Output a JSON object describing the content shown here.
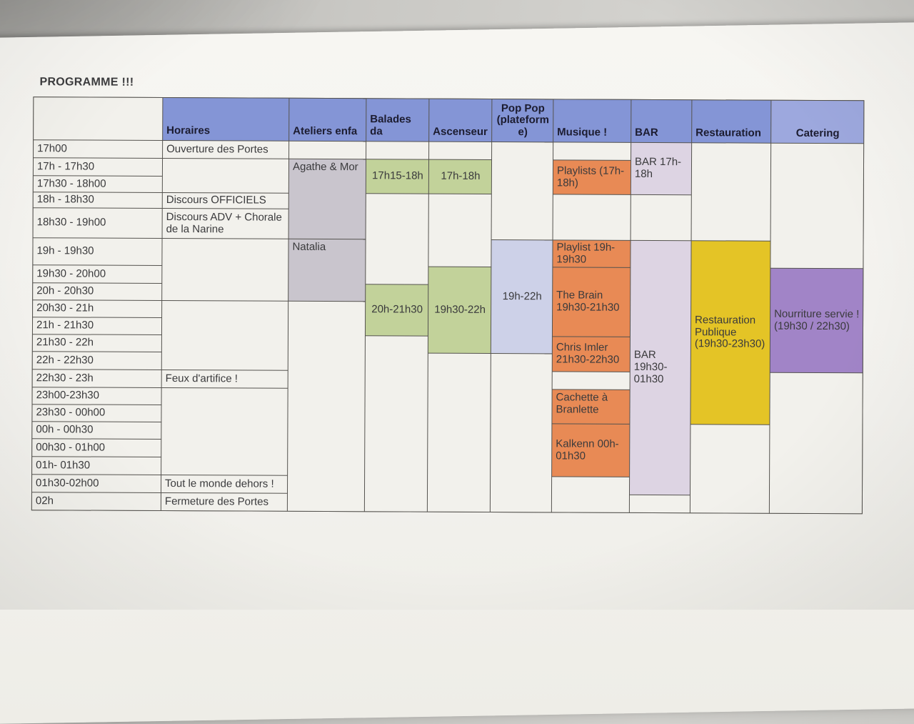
{
  "schedule": {
    "title": "PROGRAMME !!!",
    "columns": [
      "",
      "Horaires",
      "Ateliers enfa",
      "Balades da",
      "Ascenseur",
      "Pop Pop (plateforme)",
      "Musique !",
      "BAR",
      "Restauration",
      "Catering"
    ],
    "times": [
      "17h00",
      "17h - 17h30",
      "17h30 - 18h00",
      "18h - 18h30",
      "18h30 - 19h00",
      "19h - 19h30",
      "19h30 - 20h00",
      "20h - 20h30",
      "20h30 - 21h",
      "21h - 21h30",
      "21h30 - 22h",
      "22h - 22h30",
      "22h30 - 23h",
      "23h00-23h30",
      "23h30 - 00h00",
      "00h - 00h30",
      "00h30 - 01h00",
      "01h- 01h30",
      "01h30-02h00",
      "02h"
    ],
    "events": {
      "ouverture": "Ouverture des Portes",
      "discours_officiels": "Discours OFFICIELS",
      "discours_adv": "Discours ADV + Chorale de la Narine",
      "feux": "Feux d'artifice !",
      "tout_le_monde": "Tout le monde dehors !",
      "fermeture": "Fermeture des Portes",
      "agathe": "Agathe & Mor",
      "natalia": "Natalia",
      "balade_1715": "17h15-18h",
      "balade_20h": "20h-21h30",
      "ascenseur_17h": "17h-18h",
      "ascenseur_1930": "19h30-22h",
      "poppop_19h": "19h-22h",
      "playlists_17h": "Playlists (17h-18h)",
      "playlist_19h": "Playlist 19h-19h30",
      "the_brain": "The Brain 19h30-21h30",
      "chris_imler": "Chris Imler 21h30-22h30",
      "cachette": "Cachette à Branlette",
      "kalkenn": "Kalkenn 00h-01h30",
      "bar_17h": "BAR 17h-18h",
      "bar_1930": "BAR 19h30-01h30",
      "restauration_publique": "Restauration Publique (19h30-23h30)",
      "nourriture": "Nourriture servie ! (19h30 / 22h30)"
    },
    "colors": {
      "header_blue": "#8495d6",
      "header_blue_light": "#9da8de",
      "gray_cell": "#c9c5cd",
      "green_cell": "#c2d29a",
      "lavender_blue_cell": "#cdd1e8",
      "lavender_pink_cell": "#ddd4e3",
      "orange_cell": "#e88a55",
      "yellow_cell": "#e4c426",
      "purple_cell": "#a184c7"
    }
  }
}
